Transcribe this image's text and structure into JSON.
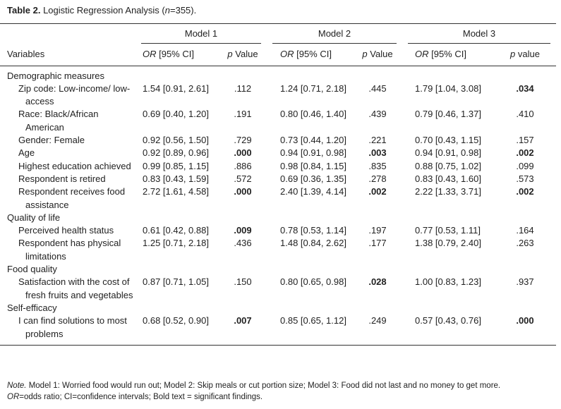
{
  "caption": [
    {
      "t": "Table 2.",
      "b": true
    },
    {
      "t": " Logistic Regression Analysis ("
    },
    {
      "t": "n",
      "i": true
    },
    {
      "t": "=355)."
    }
  ],
  "table": {
    "model_headers": [
      "Model 1",
      "Model 2",
      "Model 3"
    ],
    "variables_header": "Variables",
    "column_headers": [
      [
        {
          "t": "OR",
          "i": true
        },
        {
          "t": " [95% CI]"
        }
      ],
      [
        {
          "t": "p",
          "i": true
        },
        {
          "t": " Value"
        }
      ],
      [
        {
          "t": "OR",
          "i": true
        },
        {
          "t": " [95% CI]"
        }
      ],
      [
        {
          "t": "p",
          "i": true
        },
        {
          "t": " Value"
        }
      ],
      [
        {
          "t": "OR",
          "i": true
        },
        {
          "t": " [95% CI]"
        }
      ],
      [
        {
          "t": "p",
          "i": true
        },
        {
          "t": " value"
        }
      ]
    ],
    "sections": [
      {
        "title": "Demographic measures",
        "rows": [
          {
            "variable": "Zip code: Low-income/ low-access",
            "cells": [
              "1.54 [0.91, 2.61]",
              ".112",
              "1.24 [0.71, 2.18]",
              ".445",
              "1.79 [1.04, 3.08]",
              ".034"
            ],
            "bold": [
              false,
              false,
              false,
              false,
              false,
              true
            ]
          },
          {
            "variable": "Race: Black/African American",
            "cells": [
              "0.69 [0.40, 1.20]",
              ".191",
              "0.80 [0.46, 1.40]",
              ".439",
              "0.79 [0.46, 1.37]",
              ".410"
            ],
            "bold": [
              false,
              false,
              false,
              false,
              false,
              false
            ]
          },
          {
            "variable": "Gender: Female",
            "cells": [
              "0.92 [0.56, 1.50]",
              ".729",
              "0.73 [0.44, 1.20]",
              ".221",
              "0.70 [0.43, 1.15]",
              ".157"
            ],
            "bold": [
              false,
              false,
              false,
              false,
              false,
              false
            ]
          },
          {
            "variable": "Age",
            "cells": [
              "0.92 [0.89, 0.96]",
              ".000",
              "0.94 [0.91, 0.98]",
              ".003",
              "0.94 [0.91, 0.98]",
              ".002"
            ],
            "bold": [
              false,
              true,
              false,
              true,
              false,
              true
            ]
          },
          {
            "variable": "Highest education achieved",
            "cells": [
              "0.99 [0.85, 1.15]",
              ".886",
              "0.98 [0.84, 1.15]",
              ".835",
              "0.88 [0.75, 1.02]",
              ".099"
            ],
            "bold": [
              false,
              false,
              false,
              false,
              false,
              false
            ]
          },
          {
            "variable": "Respondent is retired",
            "cells": [
              "0.83 [0.43, 1.59]",
              ".572",
              "0.69 [0.36, 1.35]",
              ".278",
              "0.83 [0.43, 1.60]",
              ".573"
            ],
            "bold": [
              false,
              false,
              false,
              false,
              false,
              false
            ]
          },
          {
            "variable": "Respondent receives food assistance",
            "cells": [
              "2.72 [1.61, 4.58]",
              ".000",
              "2.40 [1.39, 4.14]",
              ".002",
              "2.22 [1.33, 3.71]",
              ".002"
            ],
            "bold": [
              false,
              true,
              false,
              true,
              false,
              true
            ]
          }
        ]
      },
      {
        "title": "Quality of life",
        "rows": [
          {
            "variable": "Perceived health status",
            "cells": [
              "0.61 [0.42, 0.88]",
              ".009",
              "0.78 [0.53, 1.14]",
              ".197",
              "0.77 [0.53, 1.11]",
              ".164"
            ],
            "bold": [
              false,
              true,
              false,
              false,
              false,
              false
            ]
          },
          {
            "variable": "Respondent has physical limitations",
            "cells": [
              "1.25 [0.71, 2.18]",
              ".436",
              "1.48 [0.84, 2.62]",
              ".177",
              "1.38 [0.79, 2.40]",
              ".263"
            ],
            "bold": [
              false,
              false,
              false,
              false,
              false,
              false
            ]
          }
        ]
      },
      {
        "title": "Food quality",
        "rows": [
          {
            "variable": "Satisfaction with the cost of fresh fruits and vegetables",
            "cells": [
              "0.87 [0.71, 1.05]",
              ".150",
              "0.80 [0.65, 0.98]",
              ".028",
              "1.00 [0.83, 1.23]",
              ".937"
            ],
            "bold": [
              false,
              false,
              false,
              true,
              false,
              false
            ]
          }
        ]
      },
      {
        "title": "Self-efficacy",
        "rows": [
          {
            "variable": "I can find solutions to most problems",
            "cells": [
              "0.68 [0.52, 0.90]",
              ".007",
              "0.85 [0.65, 1.12]",
              ".249",
              "0.57 [0.43, 0.76]",
              ".000"
            ],
            "bold": [
              false,
              true,
              false,
              false,
              false,
              true
            ]
          }
        ]
      }
    ]
  },
  "note": [
    [
      {
        "t": "Note.",
        "i": true
      },
      {
        "t": " Model 1: Worried food would run out; Model 2: Skip meals or cut portion size; Model 3: Food did not last and no money to get more."
      }
    ],
    [
      {
        "t": "OR",
        "i": true
      },
      {
        "t": "=odds ratio; CI=confidence intervals; Bold text = significant findings."
      }
    ]
  ]
}
